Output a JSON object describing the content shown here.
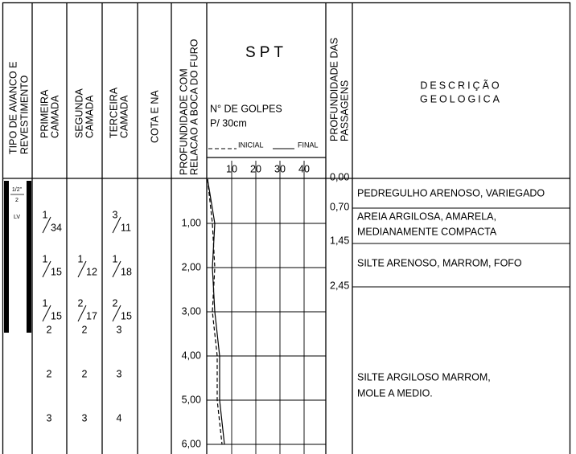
{
  "header": {
    "tipo": [
      "TIPO DE AVANCO E",
      "REVESTIMENTO"
    ],
    "primeira": [
      "PRIMEIRA",
      "CAMADA"
    ],
    "segunda": [
      "SEGUNDA",
      "CAMADA"
    ],
    "terceira": [
      "TERCEIRA",
      "CAMADA"
    ],
    "cota": [
      "COTA E NA"
    ],
    "profundidade": [
      "PROFUNDIDADE COM",
      "RELACAO A BOCA DO FURO"
    ],
    "spt_title": "SPT",
    "golpes": "N° DE GOLPES",
    "per": "P/ 30cm",
    "inicial": "INICIAL",
    "final": "FINAL",
    "passagens": [
      "PROFUNDIDADE DAS",
      "PASSAGENS"
    ],
    "descricao": [
      "DESCRIÇÃO",
      "GEOLOGICA"
    ]
  },
  "tipo": {
    "diameter_top": "1/2\"",
    "diameter_bottom": "2",
    "method": "LV"
  },
  "spt": {
    "ticks": [
      10,
      20,
      30,
      40
    ],
    "inicial": [
      0,
      2,
      3,
      2,
      4,
      4,
      6
    ],
    "final": [
      0,
      3,
      2,
      3,
      5,
      5,
      7
    ]
  },
  "depths": [
    "1,00",
    "2,00",
    "3,00",
    "4,00",
    "5,00",
    "6,00"
  ],
  "blows": [
    [
      {
        "n": "1",
        "d": "34"
      },
      null,
      {
        "n": "3",
        "d": "11"
      }
    ],
    [
      {
        "n": "1",
        "d": "15"
      },
      {
        "n": "1",
        "d": "12"
      },
      {
        "n": "1",
        "d": "18"
      }
    ],
    [
      {
        "n": "1",
        "d": "15"
      },
      {
        "n": "2",
        "d": "17"
      },
      {
        "n": "2",
        "d": "15"
      }
    ],
    [
      "2",
      "2",
      "3"
    ],
    [
      "2",
      "2",
      "3"
    ],
    [
      "3",
      "3",
      "4"
    ]
  ],
  "layers": [
    {
      "top": "0,00",
      "text": [
        "PEDREGULHO ARENOSO, VARIEGADO"
      ]
    },
    {
      "top": "0,70",
      "text": [
        "AREIA ARGILOSA, AMARELA,",
        "MEDIANAMENTE COMPACTA"
      ]
    },
    {
      "top": "1,45",
      "text": [
        "SILTE ARENOSO, MARROM, FOFO"
      ]
    },
    {
      "top": "2,45",
      "text": [
        "SILTE ARGILOSO MARROM,",
        "MOLE A MEDIO."
      ]
    }
  ]
}
